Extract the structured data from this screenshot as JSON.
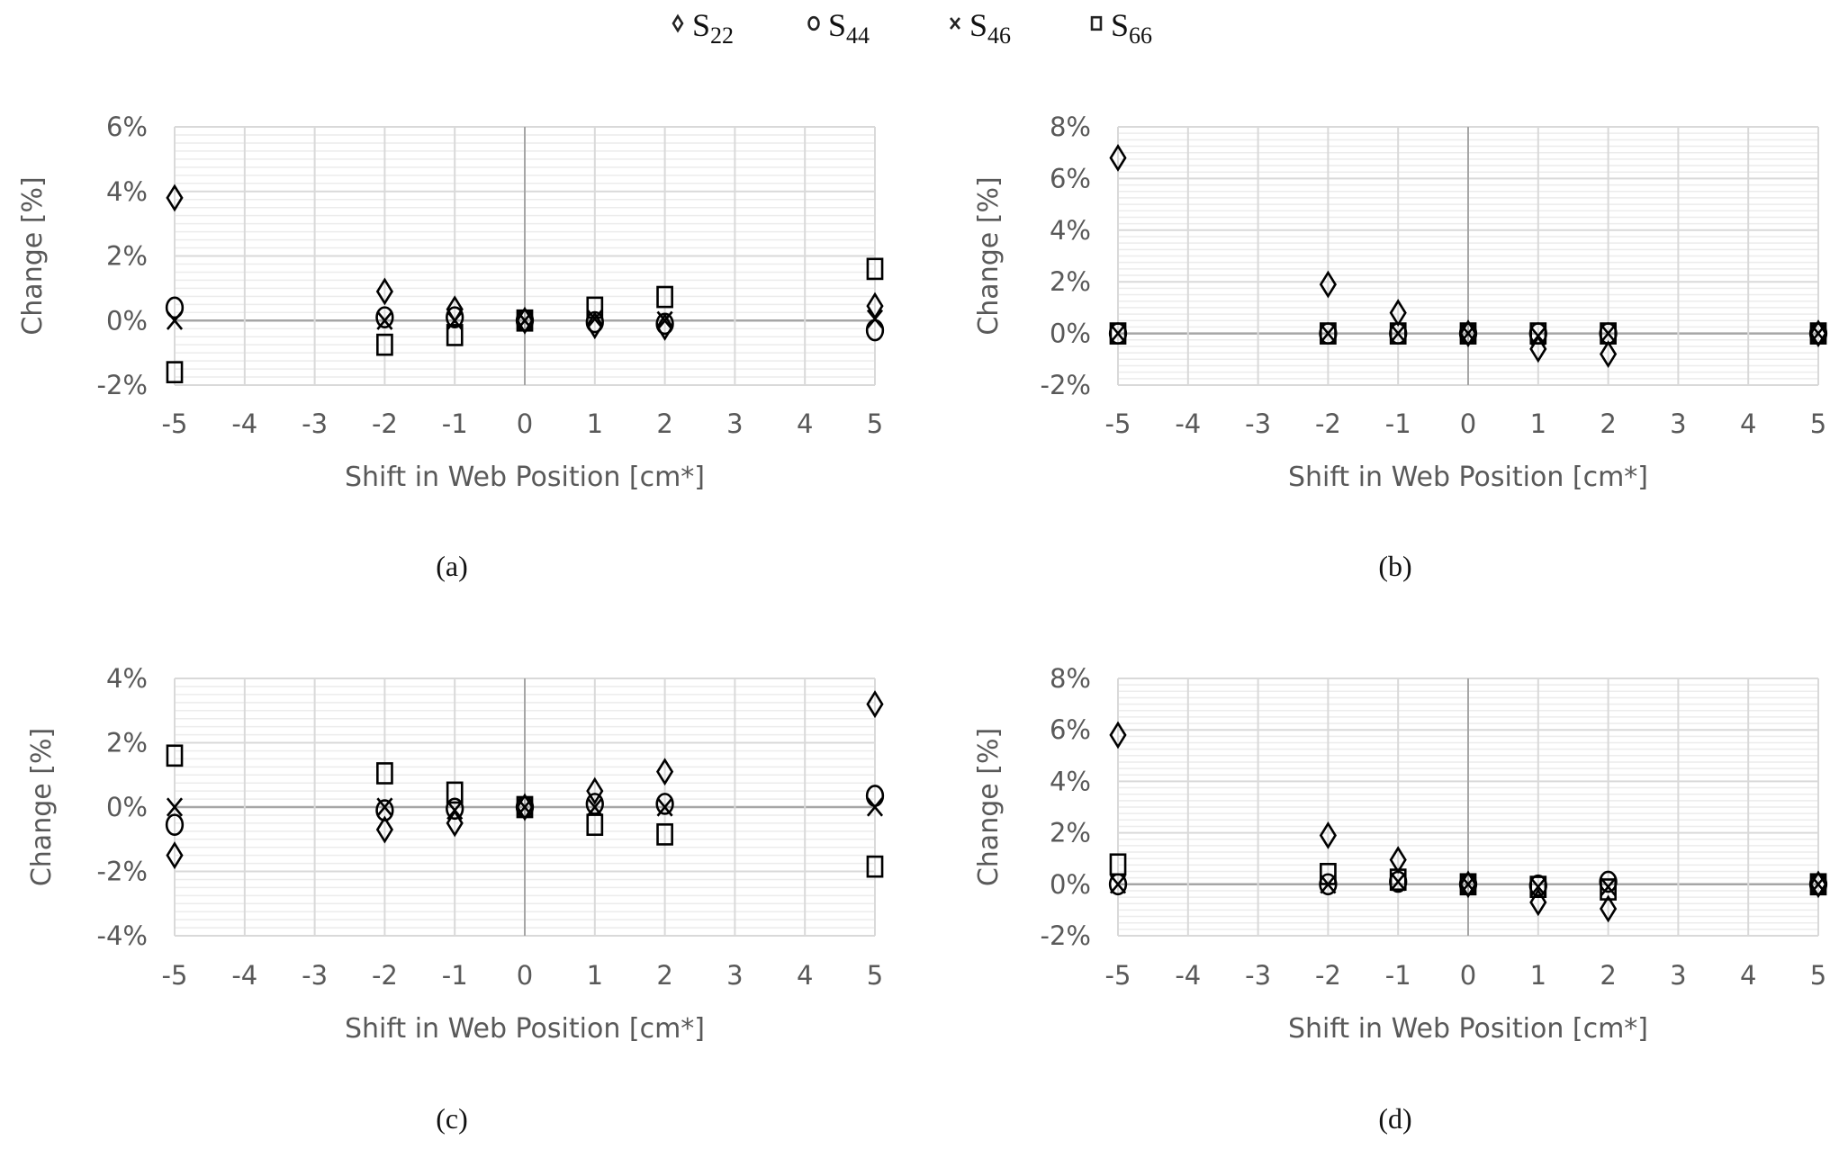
{
  "legend": {
    "placement": "top-center",
    "items": [
      {
        "marker": "diamond",
        "label": "S",
        "subscript": "22"
      },
      {
        "marker": "circle",
        "label": "S",
        "subscript": "44"
      },
      {
        "marker": "cross",
        "label": "S",
        "subscript": "46"
      },
      {
        "marker": "square",
        "label": "S",
        "subscript": "66"
      }
    ]
  },
  "chart_data": [
    {
      "type": "scatter",
      "caption": "(a)",
      "xlabel": "Shift in Web Position [cm*]",
      "ylabel": "Change [%]",
      "xlim": [
        -5,
        5
      ],
      "ylim": [
        -2,
        6
      ],
      "xticks": [
        -5,
        -4,
        -3,
        -2,
        -1,
        0,
        1,
        2,
        3,
        4,
        5
      ],
      "yticks": [
        -2,
        0,
        2,
        4,
        6
      ],
      "ytick_labels": [
        "-2%",
        "0%",
        "2%",
        "4%",
        "6%"
      ],
      "grid": true,
      "x": [
        -5,
        -2,
        -1,
        0,
        1,
        2,
        5
      ],
      "series": [
        {
          "name": "S22",
          "values": [
            3.8,
            0.9,
            0.35,
            0,
            -0.15,
            -0.2,
            0.45
          ]
        },
        {
          "name": "S44",
          "values": [
            0.4,
            0.1,
            0.1,
            0,
            -0.05,
            -0.1,
            -0.3
          ]
        },
        {
          "name": "S46",
          "values": [
            0,
            0,
            0,
            0,
            0.05,
            0,
            0.05
          ]
        },
        {
          "name": "S66",
          "values": [
            -1.6,
            -0.75,
            -0.45,
            0,
            0.4,
            0.73,
            1.6
          ]
        }
      ]
    },
    {
      "type": "scatter",
      "caption": "(b)",
      "xlabel": "Shift in Web Position [cm*]",
      "ylabel": "Change [%]",
      "xlim": [
        -5,
        5
      ],
      "ylim": [
        -2,
        8
      ],
      "xticks": [
        -5,
        -4,
        -3,
        -2,
        -1,
        0,
        1,
        2,
        3,
        4,
        5
      ],
      "yticks": [
        -2,
        0,
        2,
        4,
        6,
        8
      ],
      "ytick_labels": [
        "-2%",
        "0%",
        "2%",
        "4%",
        "6%",
        "8%"
      ],
      "grid": true,
      "x": [
        -5,
        -2,
        -1,
        0,
        1,
        2,
        5
      ],
      "series": [
        {
          "name": "S22",
          "values": [
            6.8,
            1.9,
            0.8,
            0,
            -0.6,
            -0.8,
            0
          ]
        },
        {
          "name": "S44",
          "values": [
            0,
            0,
            0,
            0,
            0,
            0,
            0
          ]
        },
        {
          "name": "S46",
          "values": [
            0,
            0,
            0,
            0,
            -0.1,
            0,
            0
          ]
        },
        {
          "name": "S66",
          "values": [
            0,
            0,
            0,
            0,
            0,
            0,
            0
          ]
        }
      ]
    },
    {
      "type": "scatter",
      "caption": "(c)",
      "xlabel": "Shift in Web Position [cm*]",
      "ylabel": "Change [%]",
      "xlim": [
        -5,
        5
      ],
      "ylim": [
        -4,
        4
      ],
      "xticks": [
        -5,
        -4,
        -3,
        -2,
        -1,
        0,
        1,
        2,
        3,
        4,
        5
      ],
      "yticks": [
        -4,
        -2,
        0,
        2,
        4
      ],
      "ytick_labels": [
        "-4%",
        "-2%",
        "0%",
        "2%",
        "4%"
      ],
      "grid": true,
      "x": [
        -5,
        -2,
        -1,
        0,
        1,
        2,
        5
      ],
      "series": [
        {
          "name": "S22",
          "values": [
            -1.5,
            -0.7,
            -0.5,
            0,
            0.5,
            1.1,
            3.2
          ]
        },
        {
          "name": "S44",
          "values": [
            -0.55,
            -0.1,
            -0.05,
            0,
            0.1,
            0.1,
            0.35
          ]
        },
        {
          "name": "S46",
          "values": [
            0,
            0,
            -0.1,
            0,
            0,
            0,
            0
          ]
        },
        {
          "name": "S66",
          "values": [
            1.6,
            1.05,
            0.45,
            0,
            -0.55,
            -0.85,
            -1.85
          ]
        }
      ]
    },
    {
      "type": "scatter",
      "caption": "(d)",
      "xlabel": "Shift in Web Position [cm*]",
      "ylabel": "Change [%]",
      "xlim": [
        -5,
        5
      ],
      "ylim": [
        -2,
        8
      ],
      "xticks": [
        -5,
        -4,
        -3,
        -2,
        -1,
        0,
        1,
        2,
        3,
        4,
        5
      ],
      "yticks": [
        -2,
        0,
        2,
        4,
        6,
        8
      ],
      "ytick_labels": [
        "-2%",
        "0%",
        "2%",
        "4%",
        "6%",
        "8%"
      ],
      "grid": true,
      "x": [
        -5,
        -2,
        -1,
        0,
        1,
        2,
        5
      ],
      "series": [
        {
          "name": "S22",
          "values": [
            5.8,
            1.9,
            0.95,
            0,
            -0.7,
            -0.95,
            0
          ]
        },
        {
          "name": "S44",
          "values": [
            0,
            0,
            0.1,
            0,
            -0.05,
            0.1,
            0
          ]
        },
        {
          "name": "S46",
          "values": [
            0,
            0,
            0.1,
            0,
            -0.1,
            -0.1,
            0
          ]
        },
        {
          "name": "S66",
          "values": [
            0.77,
            0.4,
            0.18,
            0,
            -0.1,
            -0.2,
            0
          ]
        }
      ]
    }
  ]
}
